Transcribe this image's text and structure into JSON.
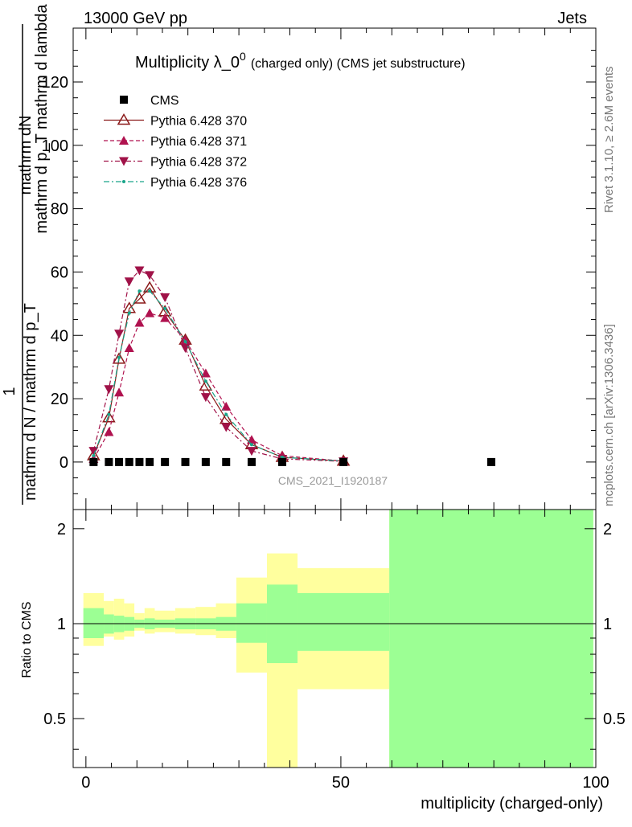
{
  "header": {
    "left": "13000 GeV pp",
    "right": "Jets"
  },
  "side_texts": {
    "rivet": "Rivet 3.1.10, ≥ 2.6M events",
    "mcplots": "mcplots.cern.ch [arXiv:1306.3436]"
  },
  "analysis_id": "CMS_2021_I1920187",
  "colors": {
    "cms": "#000000",
    "pythia_370": "#8b1a1a",
    "pythia_371": "#b0124f",
    "pythia_372": "#a01248",
    "pythia_376": "#1aa58a",
    "band_inner": "#9cff94",
    "band_outer": "#ffff9e"
  },
  "chart_data": [
    {
      "type": "line",
      "title": "Multiplicity λ_0",
      "title_sup": "0",
      "title_suffix": "(charged only) (CMS jet substructure)",
      "ylabel_numer_1": "1",
      "ylabel_numer_2": "mathrm dN",
      "ylabel_numer_3": "mathrm d p_T mathrm d lambda",
      "ylabel_denom": "mathrm d N / mathrm d p_T",
      "ylim": [
        -15,
        137
      ],
      "xlim": [
        -2.5,
        100
      ],
      "yticks": [
        0,
        20,
        40,
        60,
        80,
        100,
        120
      ],
      "ytick_labels": [
        "0",
        "20",
        "40",
        "60",
        "80",
        "100",
        "120"
      ],
      "legend": [
        "CMS",
        "Pythia 6.428 370",
        "Pythia 6.428 371",
        "Pythia 6.428 372",
        "Pythia 6.428 376"
      ],
      "legend_position": "top-left",
      "series": [
        {
          "name": "CMS",
          "x": [
            1.5,
            4.5,
            6.5,
            8.5,
            10.5,
            12.5,
            15.5,
            19.5,
            23.5,
            27.5,
            32.5,
            38.5,
            50.5,
            79.5
          ],
          "y": [
            0,
            0,
            0,
            0,
            0,
            0,
            0,
            0,
            0,
            0,
            0,
            0,
            0,
            0
          ]
        },
        {
          "name": "Pythia 6.428 370",
          "x": [
            1.5,
            4.5,
            6.5,
            8.5,
            10.5,
            12.5,
            15.5,
            19.5,
            23.5,
            27.5,
            32.5,
            38.5,
            50.5
          ],
          "y": [
            2,
            14,
            32.5,
            48.5,
            51.5,
            55,
            47.5,
            38.5,
            24,
            13.5,
            5.5,
            1.5,
            0.3
          ]
        },
        {
          "name": "Pythia 6.428 371",
          "x": [
            1.5,
            4.5,
            6.5,
            8.5,
            10.5,
            12.5,
            15.5,
            19.5,
            23.5,
            27.5,
            32.5,
            38.5,
            50.5
          ],
          "y": [
            1,
            9.5,
            22,
            36,
            44,
            47,
            45.5,
            38.5,
            28,
            17.5,
            7,
            2,
            0.3
          ]
        },
        {
          "name": "Pythia 6.428 372",
          "x": [
            1.5,
            4.5,
            6.5,
            8.5,
            10.5,
            12.5,
            15.5,
            19.5,
            23.5,
            27.5,
            32.5,
            38.5,
            50.5
          ],
          "y": [
            3.5,
            23,
            40.5,
            57,
            60.5,
            59,
            52,
            36,
            20.5,
            11,
            3.5,
            1,
            0.2
          ]
        },
        {
          "name": "Pythia 6.428 376",
          "x": [
            1.5,
            4.5,
            6.5,
            8.5,
            10.5,
            12.5,
            15.5,
            19.5,
            23.5,
            27.5,
            32.5,
            38.5,
            50.5
          ],
          "y": [
            2,
            15,
            33,
            47,
            54,
            54,
            48.5,
            38,
            25.5,
            15,
            5.5,
            1.5,
            0.3
          ]
        }
      ]
    },
    {
      "type": "area",
      "ylabel": "Ratio to CMS",
      "xlabel": "multiplicity (charged-only)",
      "xlim": [
        -2.5,
        100
      ],
      "ylim": [
        0.35,
        2.3
      ],
      "xticks": [
        0,
        50,
        100
      ],
      "xtick_labels": [
        "0",
        "50",
        "100"
      ],
      "yticks": [
        0.5,
        1,
        2
      ],
      "ytick_labels": [
        "0.5",
        "1",
        "2"
      ],
      "reference_line": 1,
      "bins": [
        {
          "x0": -0.5,
          "x1": 3.5,
          "inner": [
            0.9,
            1.12
          ],
          "outer": [
            0.85,
            1.25
          ]
        },
        {
          "x0": 3.5,
          "x1": 5.5,
          "inner": [
            0.93,
            1.07
          ],
          "outer": [
            0.91,
            1.18
          ]
        },
        {
          "x0": 5.5,
          "x1": 7.5,
          "inner": [
            0.94,
            1.06
          ],
          "outer": [
            0.89,
            1.2
          ]
        },
        {
          "x0": 7.5,
          "x1": 9.5,
          "inner": [
            0.95,
            1.05
          ],
          "outer": [
            0.91,
            1.16
          ]
        },
        {
          "x0": 9.5,
          "x1": 11.5,
          "inner": [
            0.97,
            1.03
          ],
          "outer": [
            0.95,
            1.08
          ]
        },
        {
          "x0": 11.5,
          "x1": 13.5,
          "inner": [
            0.96,
            1.04
          ],
          "outer": [
            0.93,
            1.12
          ]
        },
        {
          "x0": 13.5,
          "x1": 17.5,
          "inner": [
            0.97,
            1.03
          ],
          "outer": [
            0.94,
            1.1
          ]
        },
        {
          "x0": 17.5,
          "x1": 21.5,
          "inner": [
            0.96,
            1.04
          ],
          "outer": [
            0.93,
            1.12
          ]
        },
        {
          "x0": 21.5,
          "x1": 25.5,
          "inner": [
            0.96,
            1.04
          ],
          "outer": [
            0.92,
            1.13
          ]
        },
        {
          "x0": 25.5,
          "x1": 29.5,
          "inner": [
            0.95,
            1.05
          ],
          "outer": [
            0.9,
            1.16
          ]
        },
        {
          "x0": 29.5,
          "x1": 35.5,
          "inner": [
            0.87,
            1.16
          ],
          "outer": [
            0.7,
            1.4
          ]
        },
        {
          "x0": 35.5,
          "x1": 41.5,
          "inner": [
            0.75,
            1.33
          ],
          "outer": [
            0.35,
            1.67
          ]
        },
        {
          "x0": 41.5,
          "x1": 59.5,
          "inner": [
            0.82,
            1.25
          ],
          "outer": [
            0.62,
            1.5
          ]
        },
        {
          "x0": 59.5,
          "x1": 99.5,
          "inner": [
            0.35,
            2.3
          ],
          "outer": [
            0.35,
            2.3
          ]
        }
      ]
    }
  ]
}
